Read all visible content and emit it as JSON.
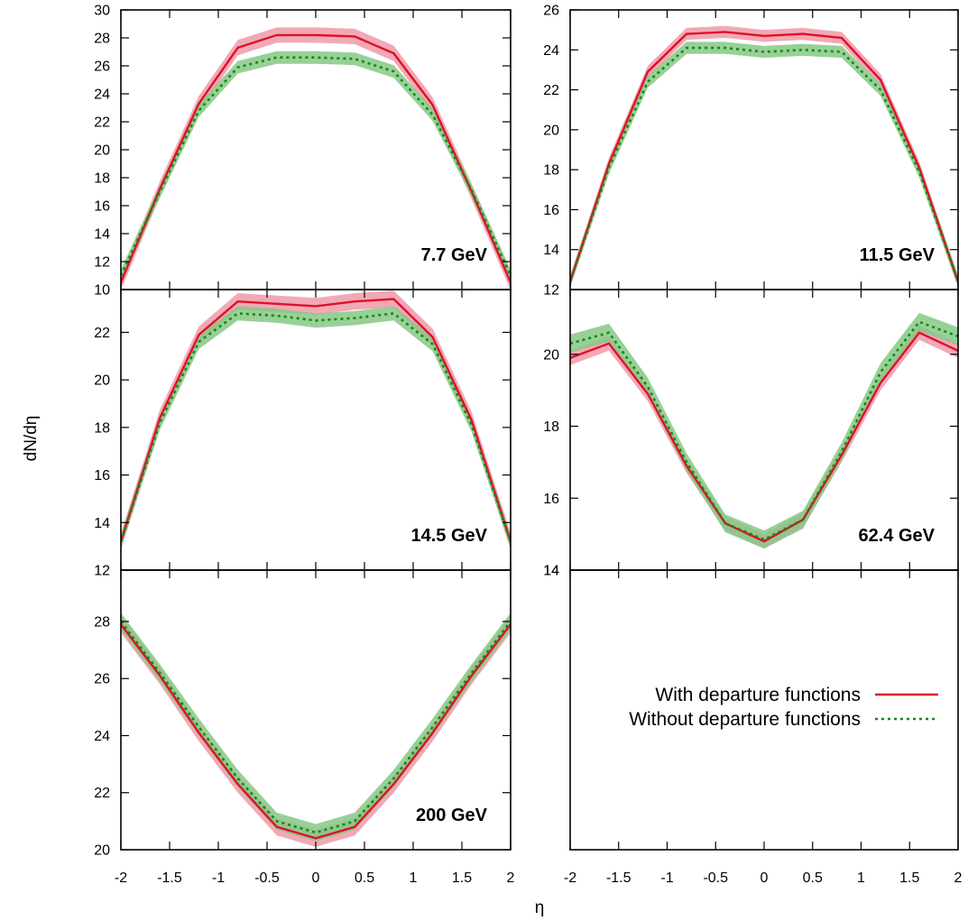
{
  "chart_data": {
    "type": "line",
    "ylabel": "dN/dη",
    "xlabel": "η",
    "xlim": [
      -2,
      2
    ],
    "x_ticks": [
      "-2",
      "-1.5",
      "-1",
      "-0.5",
      "0",
      "0.5",
      "1",
      "1.5",
      "2"
    ],
    "x": [
      -2,
      -1.6,
      -1.2,
      -0.8,
      -0.4,
      0,
      0.4,
      0.8,
      1.2,
      1.6,
      2
    ],
    "legend": {
      "placement": "empty bottom-right panel",
      "entries": [
        {
          "name": "With departure functions",
          "color": "#e0102a",
          "style": "solid"
        },
        {
          "name": "Without departure functions",
          "color": "#138a13",
          "style": "dotted"
        }
      ]
    },
    "colors": {
      "with": "#e0102a",
      "with_band": "#ef9aa8",
      "without": "#138a13",
      "without_band": "#86c886"
    },
    "panels": [
      {
        "label": "7.7 GeV",
        "ylim": [
          10,
          30
        ],
        "y_ticks": [
          "10",
          "12",
          "14",
          "16",
          "18",
          "20",
          "22",
          "24",
          "26",
          "28",
          "30"
        ],
        "series": [
          {
            "name": "With departure functions",
            "values": [
              10.5,
              17.2,
              23.3,
              27.3,
              28.2,
              28.2,
              28.1,
              26.9,
              23.2,
              17.0,
              10.5
            ],
            "band": 0.55
          },
          {
            "name": "Without departure functions",
            "values": [
              11.0,
              17.0,
              22.8,
              25.9,
              26.6,
              26.6,
              26.5,
              25.6,
              22.5,
              17.1,
              11.0
            ],
            "band": 0.45
          }
        ]
      },
      {
        "label": "11.5 GeV",
        "ylim": [
          12,
          26
        ],
        "y_ticks": [
          "12",
          "14",
          "16",
          "18",
          "20",
          "22",
          "24",
          "26"
        ],
        "series": [
          {
            "name": "With departure functions",
            "values": [
              12.4,
              18.3,
              22.9,
              24.8,
              24.9,
              24.7,
              24.8,
              24.6,
              22.5,
              18.1,
              12.4
            ],
            "band": 0.3
          },
          {
            "name": "Without departure functions",
            "values": [
              12.4,
              18.1,
              22.4,
              24.1,
              24.1,
              23.9,
              24.0,
              23.9,
              22.0,
              17.9,
              12.4
            ],
            "band": 0.3
          }
        ]
      },
      {
        "label": "14.5 GeV",
        "ylim": [
          12,
          23.8
        ],
        "y_ticks": [
          "12",
          "14",
          "16",
          "18",
          "20",
          "22"
        ],
        "series": [
          {
            "name": "With departure functions",
            "values": [
              13.2,
              18.4,
              21.9,
              23.3,
              23.2,
              23.1,
              23.3,
              23.4,
              21.8,
              18.3,
              13.2
            ],
            "band": 0.35
          },
          {
            "name": "Without departure functions",
            "values": [
              13.2,
              18.2,
              21.6,
              22.8,
              22.7,
              22.5,
              22.6,
              22.8,
              21.5,
              18.1,
              13.2
            ],
            "band": 0.3
          }
        ]
      },
      {
        "label": "62.4 GeV",
        "ylim": [
          14,
          21.8
        ],
        "y_ticks": [
          "14",
          "16",
          "18",
          "20"
        ],
        "series": [
          {
            "name": "With departure functions",
            "values": [
              19.9,
              20.3,
              18.9,
              16.9,
              15.3,
              14.8,
              15.4,
              17.2,
              19.2,
              20.6,
              20.1
            ],
            "band": 0.2
          },
          {
            "name": "Without departure functions",
            "values": [
              20.3,
              20.6,
              19.1,
              17.0,
              15.3,
              14.85,
              15.4,
              17.3,
              19.5,
              20.9,
              20.5
            ],
            "band": 0.25
          }
        ]
      },
      {
        "label": "200 GeV",
        "ylim": [
          20,
          29.8
        ],
        "y_ticks": [
          "20",
          "22",
          "24",
          "26",
          "28"
        ],
        "series": [
          {
            "name": "With departure functions",
            "values": [
              27.9,
              26.1,
              24.1,
              22.3,
              20.8,
              20.4,
              20.8,
              22.3,
              24.1,
              26.1,
              27.9
            ],
            "band": 0.3
          },
          {
            "name": "Without departure functions",
            "values": [
              28.0,
              26.2,
              24.3,
              22.5,
              21.0,
              20.6,
              21.0,
              22.5,
              24.3,
              26.2,
              28.0
            ],
            "band": 0.3
          }
        ]
      }
    ]
  }
}
